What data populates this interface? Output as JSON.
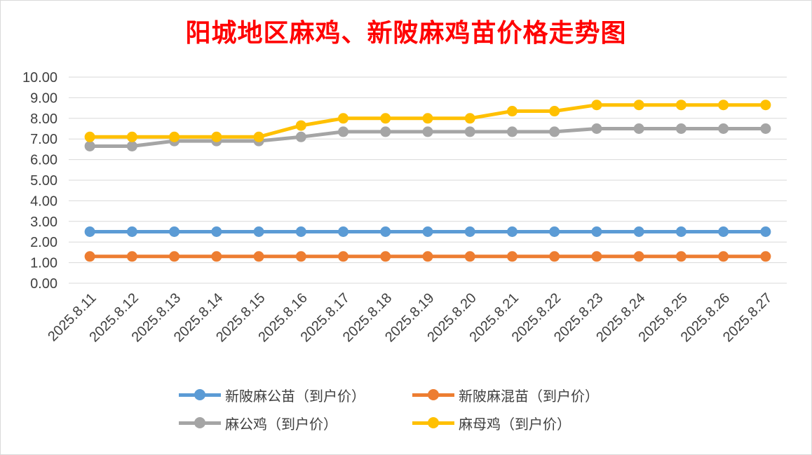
{
  "chart_data": {
    "type": "line",
    "title": "阳城地区麻鸡、新陂麻鸡苗价格走势图",
    "xlabel": "",
    "ylabel": "",
    "ylim": [
      0,
      10
    ],
    "y_ticks": [
      "0.00",
      "1.00",
      "2.00",
      "3.00",
      "4.00",
      "5.00",
      "6.00",
      "7.00",
      "8.00",
      "9.00",
      "10.00"
    ],
    "grid": true,
    "legend_position": "bottom",
    "categories": [
      "2025.8.11",
      "2025.8.12",
      "2025.8.13",
      "2025.8.14",
      "2025.8.15",
      "2025.8.16",
      "2025.8.17",
      "2025.8.18",
      "2025.8.19",
      "2025.8.20",
      "2025.8.21",
      "2025.8.22",
      "2025.8.23",
      "2025.8.24",
      "2025.8.25",
      "2025.8.26",
      "2025.8.27"
    ],
    "series": [
      {
        "name": "新陂麻公苗（到户价）",
        "color": "#5b9bd5",
        "values": [
          2.5,
          2.5,
          2.5,
          2.5,
          2.5,
          2.5,
          2.5,
          2.5,
          2.5,
          2.5,
          2.5,
          2.5,
          2.5,
          2.5,
          2.5,
          2.5,
          2.5
        ]
      },
      {
        "name": "新陂麻混苗（到户价）",
        "color": "#ed7d31",
        "values": [
          1.3,
          1.3,
          1.3,
          1.3,
          1.3,
          1.3,
          1.3,
          1.3,
          1.3,
          1.3,
          1.3,
          1.3,
          1.3,
          1.3,
          1.3,
          1.3,
          1.3
        ]
      },
      {
        "name": "麻公鸡（到户价）",
        "color": "#a5a5a5",
        "values": [
          6.65,
          6.65,
          6.9,
          6.9,
          6.9,
          7.1,
          7.35,
          7.35,
          7.35,
          7.35,
          7.35,
          7.35,
          7.5,
          7.5,
          7.5,
          7.5,
          7.5
        ]
      },
      {
        "name": "麻母鸡（到户价）",
        "color": "#ffc000",
        "values": [
          7.1,
          7.1,
          7.1,
          7.1,
          7.1,
          7.65,
          8.0,
          8.0,
          8.0,
          8.0,
          8.35,
          8.35,
          8.65,
          8.65,
          8.65,
          8.65,
          8.65
        ]
      }
    ]
  }
}
